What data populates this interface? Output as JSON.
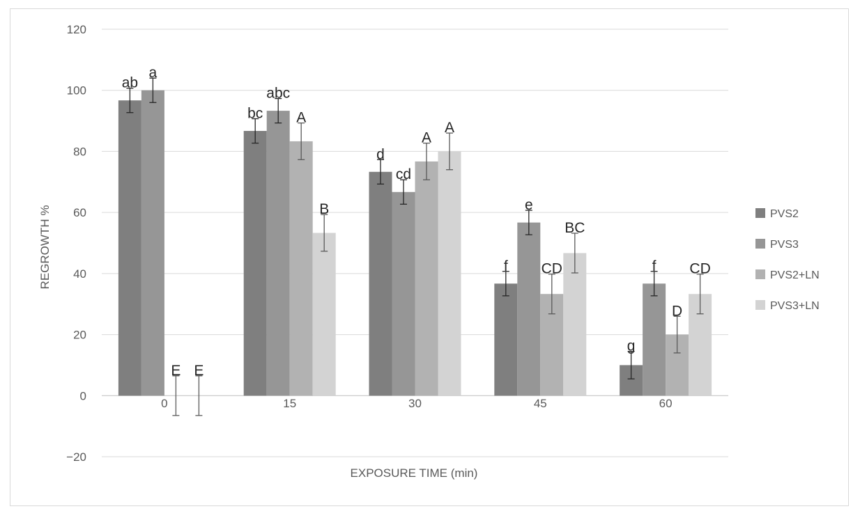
{
  "chart_data": {
    "type": "bar",
    "title": "",
    "xlabel": "EXPOSURE TIME (min)",
    "ylabel": "REGROWTH %",
    "ylim": [
      -20,
      120
    ],
    "yticks": [
      120,
      100,
      80,
      60,
      40,
      20,
      0,
      -20
    ],
    "ytick_labels": [
      "120",
      "100",
      "80",
      "60",
      "40",
      "20",
      "0",
      "−20"
    ],
    "grid": true,
    "legend_position": "right",
    "categories": [
      "0",
      "15",
      "30",
      "45",
      "60"
    ],
    "series": [
      {
        "name": "PVS2",
        "color": "#7f7f7f",
        "values": [
          96.7,
          86.7,
          73.3,
          36.7,
          10.0
        ],
        "errors": [
          4.0,
          4.0,
          4.0,
          4.0,
          4.5
        ],
        "letters": [
          "ab",
          "bc",
          "d",
          "f",
          "g"
        ]
      },
      {
        "name": "PVS3",
        "color": "#969696",
        "values": [
          100.0,
          93.3,
          66.7,
          56.7,
          36.7
        ],
        "errors": [
          4.0,
          4.0,
          4.0,
          4.0,
          4.0
        ],
        "letters": [
          "a",
          "abc",
          "cd",
          "e",
          "f"
        ]
      },
      {
        "name": "PVS2+LN",
        "color": "#b2b2b2",
        "values": [
          0.0,
          83.3,
          76.7,
          33.3,
          20.0
        ],
        "errors": [
          6.5,
          6.0,
          6.0,
          6.5,
          6.0
        ],
        "letters": [
          "E",
          "A",
          "A",
          "CD",
          "D"
        ]
      },
      {
        "name": "PVS3+LN",
        "color": "#d3d3d3",
        "values": [
          0.0,
          53.3,
          80.0,
          46.7,
          33.3
        ],
        "errors": [
          6.5,
          6.0,
          6.0,
          6.5,
          6.5
        ],
        "letters": [
          "E",
          "B",
          "A",
          "BC",
          "CD"
        ]
      }
    ]
  }
}
